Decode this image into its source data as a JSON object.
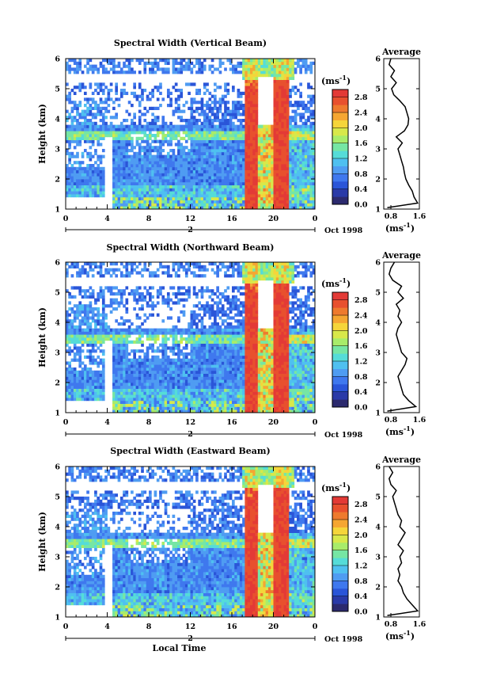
{
  "figure": {
    "xlabel": "Local Time",
    "date_label": "Oct 1998",
    "day_label": "2",
    "ylabel": "Height (km)",
    "colorbar_unit": "(ms",
    "colorbar_unit_exp": "-1",
    "average_title": "Average",
    "average_xlabel": "(ms",
    "average_xlabel_exp": "-1"
  },
  "colors": {
    "scale": [
      "#2c2a6e",
      "#2a3aa8",
      "#2a55d8",
      "#3f78ee",
      "#4f9cf2",
      "#4fc0f0",
      "#55dcd8",
      "#76e6a4",
      "#a8ec6a",
      "#d8e84a",
      "#f5d53a",
      "#f5a632",
      "#ee7a2e",
      "#e8502e",
      "#e33a36"
    ]
  },
  "chart_data": [
    {
      "type": "heatmap",
      "title": "Spectral Width (Vertical Beam)",
      "xlabel": "Local Time",
      "ylabel": "Height (km)",
      "x_ticks": [
        "0",
        "4",
        "8",
        "12",
        "16",
        "20",
        "0"
      ],
      "y_ticks": [
        "1",
        "2",
        "3",
        "4",
        "5",
        "6"
      ],
      "xlim": [
        0,
        24
      ],
      "ylim": [
        1,
        6
      ],
      "colorbar": {
        "ticks": [
          "0.0",
          "0.4",
          "0.8",
          "1.2",
          "1.6",
          "2.0",
          "2.4",
          "2.8"
        ],
        "range": [
          0,
          3.0
        ]
      },
      "average": {
        "title": "Average",
        "x_ticks": [
          "0.8",
          "1.6"
        ],
        "xlim": [
          0.6,
          1.6
        ],
        "y_ticks": [
          "1",
          "2",
          "3",
          "4",
          "5",
          "6"
        ],
        "heights": [
          1.05,
          1.2,
          1.4,
          1.6,
          1.8,
          2.0,
          2.2,
          2.4,
          2.6,
          2.8,
          3.0,
          3.2,
          3.4,
          3.6,
          3.8,
          4.0,
          4.2,
          4.4,
          4.6,
          4.8,
          5.0,
          5.2,
          5.4,
          5.6,
          5.8,
          6.0
        ],
        "values": [
          0.7,
          1.55,
          1.45,
          1.4,
          1.3,
          1.22,
          1.18,
          1.15,
          1.1,
          1.05,
          1.0,
          1.12,
          0.95,
          1.18,
          1.28,
          1.3,
          1.25,
          1.2,
          1.05,
          0.88,
          0.82,
          0.95,
          0.8,
          0.9,
          0.75,
          0.8
        ]
      }
    },
    {
      "type": "heatmap",
      "title": "Spectral Width (Northward Beam)",
      "xlabel": "Local Time",
      "ylabel": "Height (km)",
      "x_ticks": [
        "0",
        "4",
        "8",
        "12",
        "16",
        "20",
        "0"
      ],
      "y_ticks": [
        "1",
        "2",
        "3",
        "4",
        "5",
        "6"
      ],
      "xlim": [
        0,
        24
      ],
      "ylim": [
        1,
        6
      ],
      "colorbar": {
        "ticks": [
          "0.0",
          "0.4",
          "0.8",
          "1.2",
          "1.6",
          "2.0",
          "2.4",
          "2.8"
        ],
        "range": [
          0,
          3.0
        ]
      },
      "average": {
        "title": "Average",
        "x_ticks": [
          "0.8",
          "1.6"
        ],
        "xlim": [
          0.6,
          1.6
        ],
        "y_ticks": [
          "1",
          "2",
          "3",
          "4",
          "5",
          "6"
        ],
        "heights": [
          1.05,
          1.2,
          1.4,
          1.6,
          1.8,
          2.0,
          2.2,
          2.4,
          2.6,
          2.8,
          3.0,
          3.2,
          3.4,
          3.6,
          3.8,
          4.0,
          4.2,
          4.4,
          4.6,
          4.8,
          5.0,
          5.2,
          5.4,
          5.6,
          5.8,
          6.0
        ],
        "values": [
          0.7,
          1.5,
          1.3,
          1.15,
          1.1,
          1.05,
          1.0,
          1.1,
          1.2,
          1.25,
          1.1,
          1.05,
          1.0,
          0.95,
          1.0,
          1.1,
          1.0,
          1.05,
          0.95,
          1.15,
          1.0,
          1.1,
          0.85,
          0.75,
          0.8,
          0.9
        ]
      }
    },
    {
      "type": "heatmap",
      "title": "Spectral Width (Eastward Beam)",
      "xlabel": "Local Time",
      "ylabel": "Height (km)",
      "x_ticks": [
        "0",
        "4",
        "8",
        "12",
        "16",
        "20",
        "0"
      ],
      "y_ticks": [
        "1",
        "2",
        "3",
        "4",
        "5",
        "6"
      ],
      "xlim": [
        0,
        24
      ],
      "ylim": [
        1,
        6
      ],
      "colorbar": {
        "ticks": [
          "0.0",
          "0.4",
          "0.8",
          "1.2",
          "1.6",
          "2.0",
          "2.4",
          "2.8"
        ],
        "range": [
          0,
          3.0
        ]
      },
      "average": {
        "title": "Average",
        "x_ticks": [
          "0.8",
          "1.6"
        ],
        "xlim": [
          0.6,
          1.6
        ],
        "y_ticks": [
          "1",
          "2",
          "3",
          "4",
          "5",
          "6"
        ],
        "heights": [
          1.05,
          1.2,
          1.4,
          1.6,
          1.8,
          2.0,
          2.2,
          2.4,
          2.6,
          2.8,
          3.0,
          3.2,
          3.4,
          3.6,
          3.8,
          4.0,
          4.2,
          4.4,
          4.6,
          4.8,
          5.0,
          5.2,
          5.4,
          5.6,
          5.8,
          6.0
        ],
        "values": [
          0.7,
          1.55,
          1.4,
          1.25,
          1.15,
          1.1,
          1.0,
          1.05,
          1.0,
          1.1,
          1.05,
          1.15,
          1.0,
          1.1,
          1.2,
          1.05,
          1.1,
          1.0,
          0.95,
          0.9,
          0.85,
          0.95,
          0.8,
          0.75,
          0.85,
          0.75
        ]
      }
    }
  ]
}
